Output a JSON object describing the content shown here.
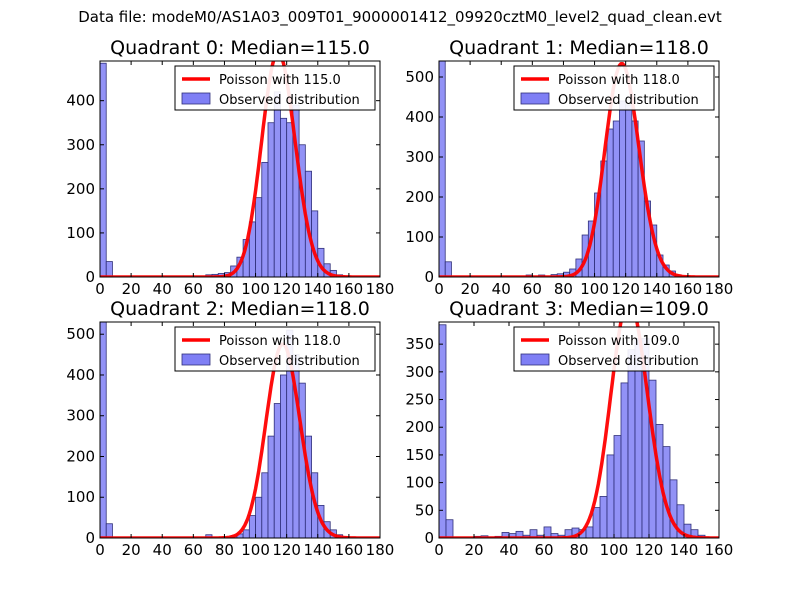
{
  "suptitle": "Data file: modeM0/AS1A03_009T01_9000001412_09920cztM0_level2_quad_clean.evt",
  "colors": {
    "poisson": "#ff0000",
    "bars": "#7f7ff5",
    "bar_edge": "#30307a"
  },
  "chart_data": [
    {
      "type": "bar",
      "title": "Quadrant 0: Median=115.0",
      "median": 115.0,
      "xlim": [
        0,
        180
      ],
      "ylim": [
        0,
        490
      ],
      "xticks": [
        0,
        20,
        40,
        60,
        80,
        100,
        120,
        140,
        160,
        180
      ],
      "yticks": [
        0,
        100,
        200,
        300,
        400
      ],
      "bin_width": 4,
      "legend": {
        "location": "top-right",
        "poisson_label": "Poisson with 115.0",
        "observed_label": "Observed distribution"
      },
      "bins": [
        0,
        4,
        68,
        72,
        76,
        80,
        84,
        88,
        92,
        96,
        100,
        104,
        108,
        112,
        116,
        120,
        124,
        128,
        132,
        136,
        140,
        144,
        148,
        152,
        156
      ],
      "counts": [
        485,
        35,
        5,
        6,
        8,
        10,
        25,
        45,
        85,
        125,
        180,
        260,
        350,
        420,
        360,
        350,
        390,
        300,
        240,
        150,
        65,
        30,
        15,
        5,
        2
      ]
    },
    {
      "type": "bar",
      "title": "Quadrant 1: Median=118.0",
      "median": 118.0,
      "xlim": [
        0,
        180
      ],
      "ylim": [
        0,
        540
      ],
      "xticks": [
        0,
        20,
        40,
        60,
        80,
        100,
        120,
        140,
        160,
        180
      ],
      "yticks": [
        0,
        100,
        200,
        300,
        400,
        500
      ],
      "bin_width": 4,
      "legend": {
        "location": "top-right",
        "poisson_label": "Poisson with 118.0",
        "observed_label": "Observed distribution"
      },
      "bins": [
        0,
        4,
        56,
        64,
        72,
        76,
        80,
        84,
        88,
        92,
        96,
        100,
        104,
        108,
        112,
        116,
        120,
        124,
        128,
        132,
        136,
        140,
        144,
        148,
        152,
        156
      ],
      "counts": [
        540,
        38,
        5,
        5,
        6,
        8,
        12,
        20,
        45,
        105,
        140,
        210,
        290,
        370,
        390,
        440,
        430,
        390,
        340,
        190,
        130,
        55,
        30,
        15,
        5,
        2
      ]
    },
    {
      "type": "bar",
      "title": "Quadrant 2: Median=118.0",
      "median": 118.0,
      "xlim": [
        0,
        180
      ],
      "ylim": [
        0,
        530
      ],
      "xticks": [
        0,
        20,
        40,
        60,
        80,
        100,
        120,
        140,
        160,
        180
      ],
      "yticks": [
        0,
        100,
        200,
        300,
        400,
        500
      ],
      "bin_width": 4,
      "legend": {
        "location": "top-right",
        "poisson_label": "Poisson with 118.0",
        "observed_label": "Observed distribution"
      },
      "bins": [
        0,
        4,
        68,
        84,
        88,
        92,
        96,
        100,
        104,
        108,
        112,
        116,
        120,
        124,
        128,
        132,
        136,
        140,
        144,
        148,
        152,
        156
      ],
      "counts": [
        530,
        35,
        8,
        5,
        10,
        20,
        55,
        100,
        160,
        250,
        330,
        400,
        510,
        450,
        380,
        250,
        160,
        80,
        40,
        20,
        8,
        3
      ]
    },
    {
      "type": "bar",
      "title": "Quadrant 3: Median=109.0",
      "median": 109.0,
      "xlim": [
        0,
        160
      ],
      "ylim": [
        0,
        390
      ],
      "xticks": [
        0,
        20,
        40,
        60,
        80,
        100,
        120,
        140,
        160
      ],
      "yticks": [
        0,
        50,
        100,
        150,
        200,
        250,
        300,
        350
      ],
      "bin_width": 4,
      "legend": {
        "location": "top-right",
        "poisson_label": "Poisson with 109.0",
        "observed_label": "Observed distribution"
      },
      "bins": [
        0,
        4,
        20,
        24,
        28,
        32,
        36,
        40,
        44,
        48,
        52,
        56,
        60,
        64,
        68,
        72,
        76,
        80,
        84,
        88,
        92,
        96,
        100,
        104,
        108,
        112,
        116,
        120,
        124,
        128,
        132,
        136,
        140,
        144,
        148
      ],
      "counts": [
        385,
        33,
        3,
        4,
        2,
        3,
        10,
        8,
        12,
        5,
        15,
        5,
        20,
        8,
        5,
        15,
        18,
        15,
        20,
        55,
        75,
        150,
        185,
        280,
        340,
        360,
        360,
        285,
        205,
        165,
        105,
        60,
        25,
        15,
        5
      ]
    }
  ]
}
